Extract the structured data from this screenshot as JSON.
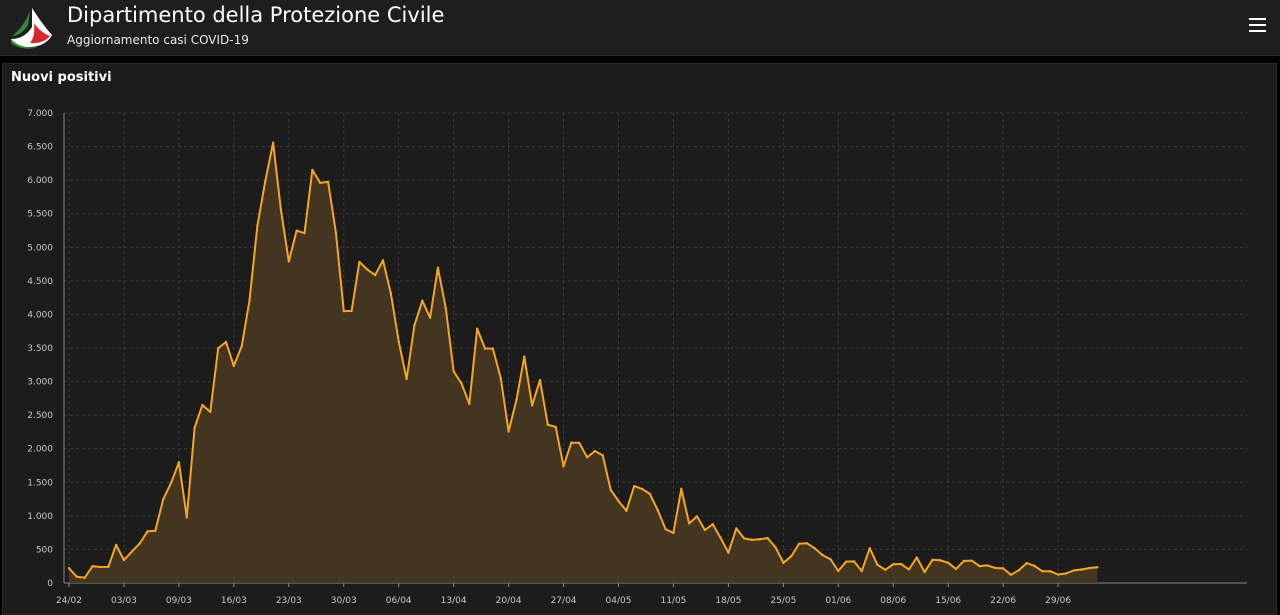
{
  "header": {
    "title": "Dipartimento della Protezione Civile",
    "subtitle": "Aggiornamento casi COVID-19",
    "logo_icon": "civil-protection-logo",
    "menu_icon": "hamburger-menu-icon"
  },
  "colors": {
    "line": "#f5a623",
    "area": "#4a3a20",
    "background": "#1c1c1c",
    "grid": "#3a3a3a"
  },
  "chart_data": {
    "type": "area",
    "title": "Nuovi positivi",
    "xlabel": "",
    "ylabel": "",
    "ylim": [
      0,
      7000
    ],
    "grid": true,
    "y_ticks": [
      0,
      500,
      1000,
      1500,
      2000,
      2500,
      3000,
      3500,
      4000,
      4500,
      5000,
      5500,
      6000,
      6500,
      7000
    ],
    "y_tick_labels": [
      "0",
      "500",
      "1.000",
      "1.500",
      "2.000",
      "2.500",
      "3.000",
      "3.500",
      "4.000",
      "4.500",
      "5.000",
      "5.500",
      "6.000",
      "6.500",
      "7.000"
    ],
    "x_tick_labels": [
      "24/02",
      "03/03",
      "09/03",
      "16/03",
      "23/03",
      "30/03",
      "06/04",
      "13/04",
      "20/04",
      "27/04",
      "04/05",
      "11/05",
      "18/05",
      "25/05",
      "01/06",
      "08/06",
      "15/06",
      "22/06",
      "29/06"
    ],
    "start_date": "24/02",
    "series": [
      {
        "values": [
          221,
          93,
          78,
          250,
          238,
          240,
          566,
          342,
          466,
          587,
          769,
          778,
          1247,
          1492,
          1797,
          977,
          2313,
          2651,
          2547,
          3497,
          3590,
          3233,
          3526,
          4207,
          5322,
          5986,
          6557,
          5560,
          4789,
          5249,
          5210,
          6153,
          5959,
          5974,
          5217,
          4050,
          4053,
          4782,
          4668,
          4585,
          4805,
          4316,
          3599,
          3039,
          3836,
          4204,
          3951,
          4694,
          4092,
          3153,
          2972,
          2667,
          3786,
          3493,
          3491,
          3047,
          2256,
          2729,
          3370,
          2646,
          3021,
          2357,
          2324,
          1739,
          2091,
          2086,
          1872,
          1965,
          1900,
          1389,
          1221,
          1075,
          1444,
          1401,
          1327,
          1083,
          802,
          744,
          1402,
          888,
          992,
          789,
          875,
          675,
          451,
          813,
          665,
          642,
          652,
          669,
          531,
          300,
          397,
          584,
          593,
          516,
          416,
          355,
          178,
          318,
          321,
          177,
          518,
          270,
          197,
          280,
          283,
          202,
          379,
          163,
          346,
          338,
          301,
          210,
          329,
          333,
          251,
          262,
          224,
          218,
          122,
          190,
          296,
          255,
          175,
          174,
          126,
          142,
          187,
          201,
          223,
          235
        ]
      }
    ]
  }
}
